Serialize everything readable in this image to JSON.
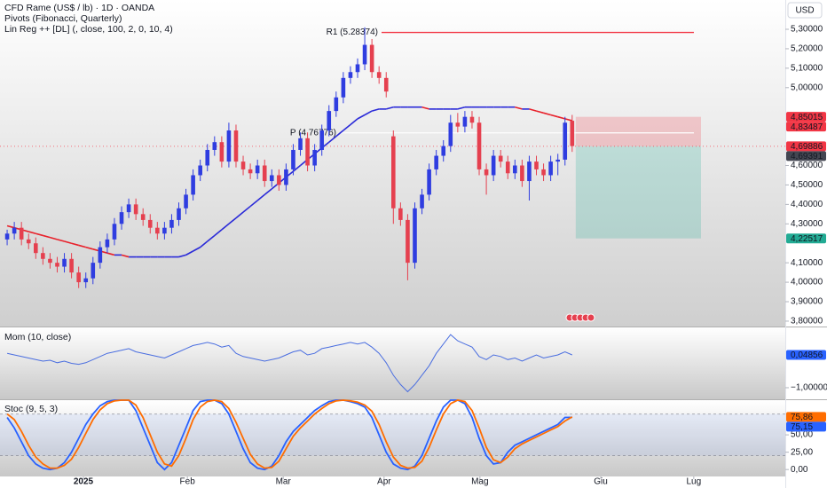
{
  "chart_data": [
    {
      "type": "candlestick",
      "title": "CFD Rame (US$ / lb) · 1D · OANDA",
      "indicators": [
        "Pivots (Fibonacci, Quarterly)",
        "Lin Reg ++ [DL] (, close, 100, 2, 0, 10, 4)"
      ],
      "currency": "USD",
      "up_color": "#2f3de0",
      "down_color": "#e5404f",
      "xlim": [
        -1,
        108.8
      ],
      "xticks": [
        {
          "value": 10.66,
          "label": "2025"
        },
        {
          "value": 25.2,
          "label": "Feb"
        },
        {
          "value": 38.6,
          "label": "Mar"
        },
        {
          "value": 52.7,
          "label": "Apr"
        },
        {
          "value": 66.1,
          "label": "Mag"
        },
        {
          "value": 83.0,
          "label": "Giu"
        },
        {
          "value": 96.0,
          "label": "Lug"
        }
      ],
      "ylim": [
        3.7724,
        5.4505
      ],
      "yticks": [
        {
          "value": 5.3,
          "label": "5,30000"
        },
        {
          "value": 5.2,
          "label": "5,20000"
        },
        {
          "value": 5.1,
          "label": "5,10000"
        },
        {
          "value": 5.0,
          "label": "5,00000"
        },
        {
          "value": 4.6,
          "label": "4,60000"
        },
        {
          "value": 4.5,
          "label": "4,50000"
        },
        {
          "value": 4.4,
          "label": "4,40000"
        },
        {
          "value": 4.3,
          "label": "4,30000"
        },
        {
          "value": 4.1,
          "label": "4,10000"
        },
        {
          "value": 4.0,
          "label": "4,00000"
        },
        {
          "value": 3.9,
          "label": "3,90000"
        },
        {
          "value": 3.8,
          "label": "3,80000"
        }
      ],
      "open": [
        4.22,
        4.25,
        4.28,
        4.22,
        4.2,
        4.15,
        4.12,
        4.1,
        4.08,
        4.12,
        4.05,
        4.0,
        4.02,
        4.1,
        4.18,
        4.22,
        4.3,
        4.36,
        4.4,
        4.35,
        4.32,
        4.28,
        4.25,
        4.28,
        4.32,
        4.38,
        4.45,
        4.55,
        4.6,
        4.68,
        4.72,
        4.62,
        4.78,
        4.62,
        4.58,
        4.56,
        4.6,
        4.52,
        4.55,
        4.5,
        4.58,
        4.68,
        4.74,
        4.6,
        4.68,
        4.78,
        4.88,
        4.95,
        5.05,
        5.08,
        5.12,
        5.22,
        5.08,
        5.05,
        4.75,
        4.38,
        4.32,
        4.1,
        4.38,
        4.45,
        4.58,
        4.65,
        4.7,
        4.82,
        4.8,
        4.85,
        4.82,
        4.58,
        4.55,
        4.65,
        4.62,
        4.56,
        4.6,
        4.52,
        4.62,
        4.58,
        4.55,
        4.62,
        4.63,
        4.83
      ],
      "high": [
        4.27,
        4.31,
        4.31,
        4.25,
        4.23,
        4.18,
        4.15,
        4.13,
        4.15,
        4.15,
        4.08,
        4.05,
        4.13,
        4.21,
        4.25,
        4.33,
        4.39,
        4.43,
        4.43,
        4.38,
        4.35,
        4.31,
        4.31,
        4.35,
        4.41,
        4.48,
        4.58,
        4.63,
        4.71,
        4.75,
        4.75,
        4.82,
        4.81,
        4.65,
        4.61,
        4.63,
        4.63,
        4.58,
        4.58,
        4.61,
        4.71,
        4.77,
        4.77,
        4.71,
        4.81,
        4.91,
        4.98,
        5.08,
        5.11,
        5.15,
        5.31,
        5.25,
        5.11,
        5.08,
        4.78,
        4.41,
        4.35,
        4.41,
        4.48,
        4.61,
        4.68,
        4.73,
        4.86,
        4.87,
        4.88,
        4.88,
        4.85,
        4.61,
        4.68,
        4.68,
        4.65,
        4.63,
        4.63,
        4.65,
        4.65,
        4.61,
        4.65,
        4.66,
        4.85,
        4.86
      ],
      "low": [
        4.19,
        4.22,
        4.19,
        4.17,
        4.12,
        4.09,
        4.07,
        4.05,
        4.05,
        4.02,
        3.97,
        3.97,
        3.99,
        4.07,
        4.15,
        4.19,
        4.27,
        4.33,
        4.32,
        4.29,
        4.25,
        4.22,
        4.22,
        4.25,
        4.29,
        4.35,
        4.42,
        4.52,
        4.57,
        4.65,
        4.59,
        4.59,
        4.59,
        4.55,
        4.53,
        4.53,
        4.49,
        4.49,
        4.47,
        4.47,
        4.55,
        4.65,
        4.57,
        4.57,
        4.65,
        4.75,
        4.85,
        4.92,
        5.02,
        5.05,
        5.09,
        5.05,
        5.02,
        4.95,
        4.3,
        4.29,
        4.01,
        4.07,
        4.35,
        4.42,
        4.55,
        4.62,
        4.67,
        4.77,
        4.77,
        4.79,
        4.55,
        4.45,
        4.52,
        4.59,
        4.53,
        4.53,
        4.49,
        4.42,
        4.55,
        4.52,
        4.52,
        4.55,
        4.6,
        4.67
      ],
      "close": [
        4.25,
        4.28,
        4.22,
        4.2,
        4.15,
        4.12,
        4.1,
        4.08,
        4.12,
        4.05,
        4.0,
        4.02,
        4.1,
        4.18,
        4.22,
        4.3,
        4.36,
        4.4,
        4.35,
        4.32,
        4.28,
        4.25,
        4.28,
        4.32,
        4.38,
        4.45,
        4.55,
        4.6,
        4.68,
        4.72,
        4.62,
        4.78,
        4.62,
        4.58,
        4.56,
        4.6,
        4.52,
        4.55,
        4.5,
        4.58,
        4.68,
        4.74,
        4.6,
        4.68,
        4.78,
        4.88,
        4.95,
        5.05,
        5.08,
        5.12,
        5.22,
        5.08,
        5.05,
        4.98,
        4.38,
        4.32,
        4.1,
        4.38,
        4.45,
        4.58,
        4.65,
        4.7,
        4.82,
        4.8,
        4.85,
        4.82,
        4.58,
        4.55,
        4.65,
        4.62,
        4.56,
        4.6,
        4.52,
        4.62,
        4.58,
        4.55,
        4.62,
        4.63,
        4.82,
        4.7
      ],
      "linreg": {
        "up_color": "#2a2ad8",
        "down_color": "#e8202a",
        "values": [
          4.29,
          4.28,
          4.27,
          4.26,
          4.25,
          4.24,
          4.23,
          4.22,
          4.21,
          4.2,
          4.19,
          4.18,
          4.17,
          4.16,
          4.15,
          4.14,
          4.14,
          4.13,
          4.13,
          4.13,
          4.13,
          4.13,
          4.13,
          4.13,
          4.13,
          4.14,
          4.16,
          4.18,
          4.21,
          4.24,
          4.27,
          4.3,
          4.33,
          4.36,
          4.39,
          4.42,
          4.45,
          4.48,
          4.51,
          4.54,
          4.57,
          4.6,
          4.63,
          4.66,
          4.69,
          4.72,
          4.75,
          4.78,
          4.81,
          4.84,
          4.86,
          4.88,
          4.89,
          4.89,
          4.9,
          4.9,
          4.9,
          4.9,
          4.9,
          4.89,
          4.89,
          4.89,
          4.89,
          4.89,
          4.9,
          4.9,
          4.9,
          4.9,
          4.9,
          4.9,
          4.9,
          4.9,
          4.89,
          4.89,
          4.88,
          4.87,
          4.86,
          4.85,
          4.84,
          4.83
        ]
      },
      "pivots": [
        {
          "label": "R1 (5.28374)",
          "value": 5.28374,
          "color": "#f23645"
        },
        {
          "label": "P (4.76776)",
          "value": 4.76776,
          "color": "#ffffff"
        }
      ],
      "price_labels": [
        {
          "value": 4.85015,
          "label": "4,85015",
          "color": "#f23645"
        },
        {
          "value": 4.83487,
          "label": "4,83487",
          "color": "#f23645"
        },
        {
          "value": 4.69886,
          "label": "4,69886",
          "color": "#f23645"
        },
        {
          "value": 4.69391,
          "label": "4,69391",
          "color": "#434651"
        },
        {
          "value": 4.22517,
          "label": "4,22517",
          "color": "#22ab94"
        }
      ]
    },
    {
      "type": "line",
      "title": "Mom (10, close)",
      "color": "#4a6ee0",
      "ylim": [
        -1.37,
        0.93
      ],
      "yticks": [
        {
          "value": -1,
          "label": "−1,00000"
        }
      ],
      "values": [
        0.1,
        0.05,
        0.0,
        -0.05,
        -0.1,
        -0.15,
        -0.12,
        -0.2,
        -0.15,
        -0.22,
        -0.25,
        -0.2,
        -0.1,
        0.0,
        0.1,
        0.15,
        0.2,
        0.25,
        0.15,
        0.1,
        0.05,
        0.0,
        -0.05,
        0.05,
        0.15,
        0.25,
        0.35,
        0.4,
        0.45,
        0.4,
        0.3,
        0.35,
        0.1,
        0.0,
        -0.05,
        -0.1,
        -0.15,
        -0.1,
        -0.05,
        0.05,
        0.15,
        0.2,
        0.05,
        0.1,
        0.25,
        0.3,
        0.35,
        0.4,
        0.45,
        0.4,
        0.45,
        0.3,
        0.1,
        -0.2,
        -0.6,
        -0.9,
        -1.13,
        -0.9,
        -0.6,
        -0.3,
        0.1,
        0.4,
        0.7,
        0.5,
        0.4,
        0.3,
        0.0,
        -0.1,
        0.05,
        0.0,
        -0.1,
        -0.05,
        -0.15,
        -0.05,
        0.05,
        -0.05,
        0.0,
        0.05,
        0.15,
        0.04856
      ],
      "price_labels": [
        {
          "value": 0.04856,
          "label": "0,04856",
          "color": "#2962ff"
        }
      ]
    },
    {
      "type": "line",
      "title": "Stoc (9, 5, 3)",
      "ylim": [
        -10,
        100
      ],
      "yticks": [
        {
          "value": 50,
          "label": "50,00"
        },
        {
          "value": 25,
          "label": "25,00"
        },
        {
          "value": 0,
          "label": "0,00"
        }
      ],
      "band": [
        20,
        80
      ],
      "band_color": "#2962ff",
      "series": [
        {
          "color": "#2962ff",
          "values": [
            75,
            60,
            40,
            20,
            8,
            2,
            0,
            2,
            10,
            25,
            45,
            65,
            80,
            92,
            98,
            100,
            100,
            100,
            85,
            60,
            35,
            10,
            0,
            10,
            35,
            60,
            85,
            98,
            100,
            100,
            95,
            80,
            55,
            30,
            10,
            2,
            0,
            5,
            20,
            40,
            55,
            65,
            75,
            85,
            92,
            98,
            100,
            100,
            98,
            95,
            90,
            75,
            50,
            25,
            8,
            2,
            0,
            5,
            20,
            45,
            70,
            90,
            100,
            100,
            95,
            75,
            45,
            20,
            8,
            10,
            25,
            35,
            40,
            45,
            50,
            55,
            60,
            65,
            75,
            75.15
          ]
        },
        {
          "color": "#ff6d00",
          "values": [
            80,
            72,
            55,
            35,
            18,
            8,
            2,
            2,
            6,
            15,
            32,
            52,
            72,
            86,
            95,
            99,
            100,
            100,
            93,
            75,
            50,
            25,
            8,
            5,
            20,
            45,
            72,
            90,
            98,
            100,
            98,
            88,
            68,
            45,
            22,
            8,
            2,
            3,
            12,
            30,
            48,
            60,
            70,
            80,
            88,
            95,
            99,
            100,
            99,
            97,
            93,
            84,
            65,
            40,
            18,
            6,
            2,
            3,
            12,
            32,
            57,
            80,
            95,
            100,
            98,
            85,
            60,
            32,
            14,
            10,
            18,
            30,
            37,
            42,
            47,
            52,
            57,
            62,
            70,
            75.86
          ]
        }
      ],
      "price_labels": [
        {
          "value": 75.86,
          "label": "75,86",
          "color": "#ff6d00"
        },
        {
          "value": 75.15,
          "label": "75,15",
          "color": "#2962ff"
        }
      ]
    }
  ]
}
